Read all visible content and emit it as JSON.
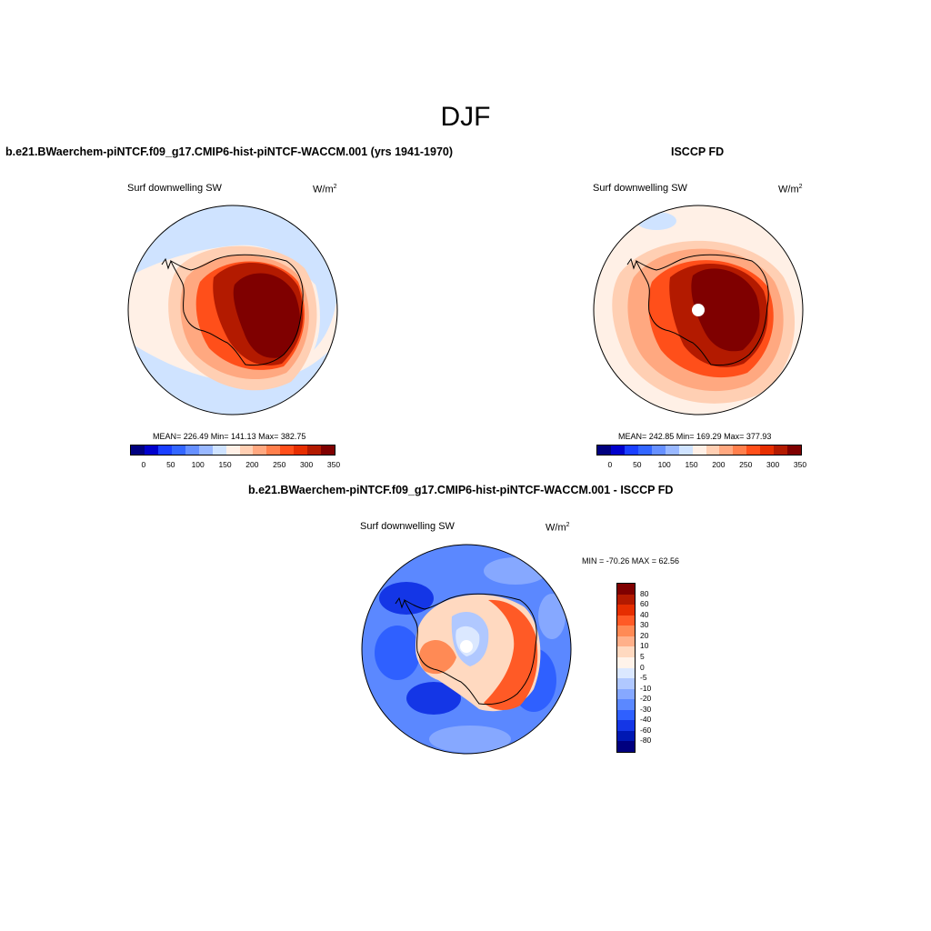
{
  "title": "DJF",
  "panels": [
    {
      "title": "b.e21.BWaerchem-piNTCF.f09_g17.CMIP6-hist-piNTCF-WACCM.001 (yrs 1941-1970)",
      "var_label": "Surf downwelling SW",
      "units": "W/m",
      "units_exp": "2",
      "stats": "MEAN= 226.49  Min= 141.13  Max= 382.75"
    },
    {
      "title": "ISCCP FD",
      "var_label": "Surf downwelling SW",
      "units": "W/m",
      "units_exp": "2",
      "stats": "MEAN= 242.85  Min= 169.29  Max= 377.93"
    },
    {
      "title": "b.e21.BWaerchem-piNTCF.f09_g17.CMIP6-hist-piNTCF-WACCM.001 - ISCCP FD",
      "var_label": "Surf downwelling SW",
      "units": "W/m",
      "units_exp": "2",
      "stats": "MIN = -70.26 MAX =  62.56"
    }
  ],
  "colorbar_abs": {
    "colors": [
      "#00007f",
      "#0000cc",
      "#1a3fff",
      "#3366ff",
      "#6690ff",
      "#99b8ff",
      "#cfe3ff",
      "#fff0e6",
      "#ffcfb3",
      "#ffa880",
      "#ff7f4c",
      "#ff4f1a",
      "#e62e00",
      "#b31a00",
      "#7f0000"
    ],
    "ticks": [
      "0",
      "50",
      "100",
      "150",
      "200",
      "250",
      "300",
      "350"
    ]
  },
  "colorbar_diff": {
    "colors": [
      "#7f0000",
      "#b31a00",
      "#e62e00",
      "#ff5a26",
      "#ff8a55",
      "#ffb08a",
      "#ffd9c0",
      "#fff3ea",
      "#dbe8ff",
      "#b0c8ff",
      "#86a8ff",
      "#5b88ff",
      "#2f60ff",
      "#1436e6",
      "#0018b3",
      "#00007f"
    ],
    "ticks": [
      "80",
      "60",
      "40",
      "30",
      "20",
      "10",
      "5",
      "0",
      "-5",
      "-10",
      "-20",
      "-30",
      "-40",
      "-60",
      "-80"
    ]
  }
}
